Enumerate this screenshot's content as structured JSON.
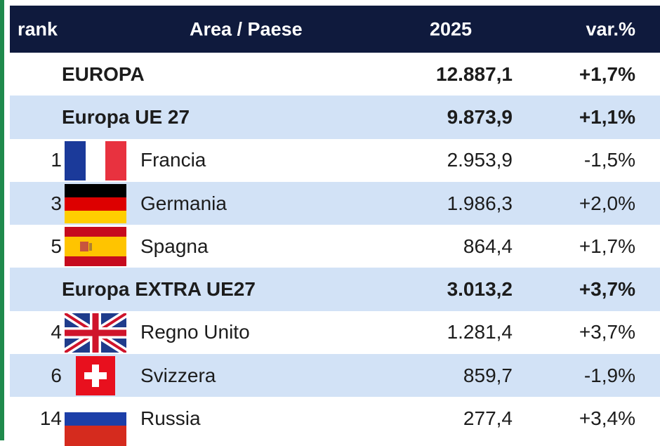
{
  "table": {
    "header": [
      "rank",
      "Area / Paese",
      "2025",
      "var.%"
    ],
    "rows": [
      {
        "name": "EUROPA",
        "value": "12.887,1",
        "var": "+1,7%"
      },
      {
        "name": "Europa UE 27",
        "value": "9.873,9",
        "var": "+1,1%"
      },
      {
        "rank": "1",
        "name": "Francia",
        "value": "2.953,9",
        "var": "-1,5%"
      },
      {
        "rank": "3",
        "name": "Germania",
        "value": "1.986,3",
        "var": "+2,0%"
      },
      {
        "rank": "5",
        "name": "Spagna",
        "value": "864,4",
        "var": "+1,7%"
      },
      {
        "name": "Europa EXTRA UE27",
        "value": "3.013,2",
        "var": "+3,7%"
      },
      {
        "rank": "4",
        "name": "Regno Unito",
        "value": "1.281,4",
        "var": "+3,7%"
      },
      {
        "rank": "6",
        "name": "Svizzera",
        "value": "859,7",
        "var": "-1,9%"
      },
      {
        "rank": "14",
        "name": "Russia",
        "value": "277,4",
        "var": "+3,4%"
      }
    ]
  }
}
